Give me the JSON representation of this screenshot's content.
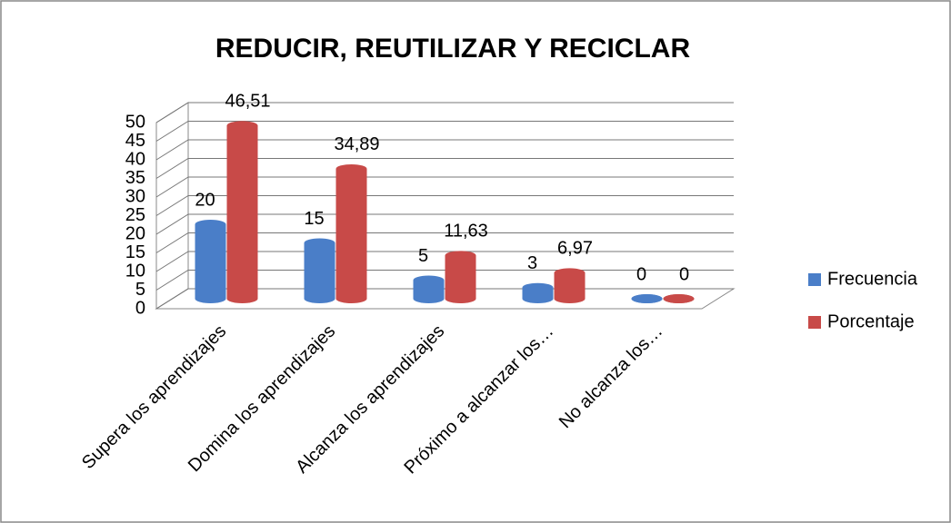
{
  "chart_data": {
    "type": "bar3d",
    "title": "REDUCIR, REUTILIZAR Y RECICLAR",
    "categories": [
      "Supera los aprendizajes",
      "Domina los aprendizajes",
      "Alcanza los aprendizajes",
      "Próximo a alcanzar los…",
      "No alcanza los…"
    ],
    "series": [
      {
        "name": "Frecuencia",
        "color": "#4a7ec8",
        "values": [
          20,
          15,
          5,
          3,
          0
        ]
      },
      {
        "name": "Porcentaje",
        "color": "#c84a48",
        "values": [
          46.51,
          34.89,
          11.63,
          6.97,
          0
        ],
        "value_labels": [
          "46,51",
          "34,89",
          "11,63",
          "6,97",
          "0"
        ]
      }
    ],
    "ylim": [
      0,
      50
    ],
    "yticks": [
      0,
      5,
      10,
      15,
      20,
      25,
      30,
      35,
      40,
      45,
      50
    ],
    "grid": true,
    "legend": "right"
  }
}
